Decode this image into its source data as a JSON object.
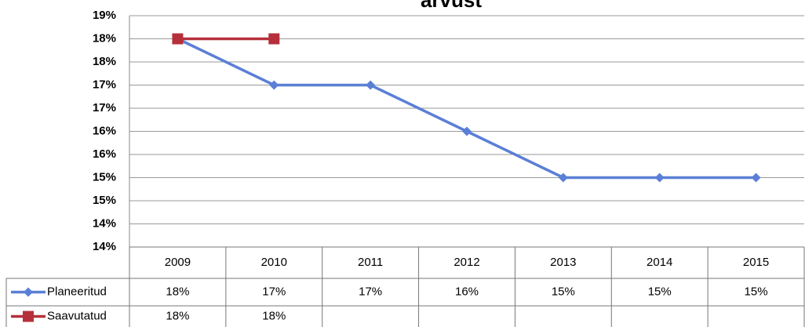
{
  "chart_data": {
    "type": "line",
    "title": "arvust",
    "categories": [
      "2009",
      "2010",
      "2011",
      "2012",
      "2013",
      "2014",
      "2015"
    ],
    "series": [
      {
        "name": "Planeeritud",
        "color": "#5b7fd6",
        "marker": "diamond",
        "values": [
          18.05,
          17.15,
          17.15,
          16.25,
          15.35,
          15.35,
          15.35
        ],
        "value_labels": [
          "18%",
          "17%",
          "17%",
          "16%",
          "15%",
          "15%",
          "15%"
        ]
      },
      {
        "name": "Saavutatud",
        "color": "#b5303a",
        "marker": "square",
        "values": [
          18.05,
          18.05,
          null,
          null,
          null,
          null,
          null
        ],
        "value_labels": [
          "18%",
          "18%",
          null,
          null,
          null,
          null,
          null
        ]
      }
    ],
    "ylim": [
      14.0,
      18.5
    ],
    "yticks": [
      {
        "value": 14.0,
        "label": "14%"
      },
      {
        "value": 14.45,
        "label": "14%"
      },
      {
        "value": 14.9,
        "label": "15%"
      },
      {
        "value": 15.35,
        "label": "15%"
      },
      {
        "value": 15.8,
        "label": "16%"
      },
      {
        "value": 16.25,
        "label": "16%"
      },
      {
        "value": 16.7,
        "label": "17%"
      },
      {
        "value": 17.15,
        "label": "17%"
      },
      {
        "value": 17.6,
        "label": "18%"
      },
      {
        "value": 18.05,
        "label": "18%"
      },
      {
        "value": 18.5,
        "label": "19%"
      }
    ],
    "grid": true
  }
}
